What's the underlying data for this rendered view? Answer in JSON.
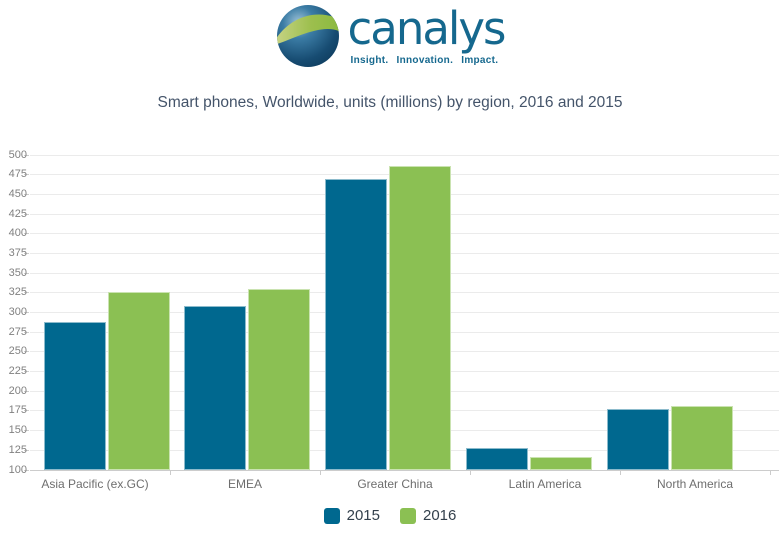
{
  "logo": {
    "brand": "canalys",
    "tagline": "Insight. Innovation. Impact."
  },
  "chart_data": {
    "type": "bar",
    "title": "Smart phones, Worldwide, units (millions) by region, 2016 and 2015",
    "categories": [
      "Asia Pacific (ex.GC)",
      "EMEA",
      "Greater China",
      "Latin America",
      "North America"
    ],
    "series": [
      {
        "name": "2015",
        "color": "#00688F",
        "values": [
          288,
          308,
          469,
          128,
          177
        ]
      },
      {
        "name": "2016",
        "color": "#8BC053",
        "values": [
          326,
          330,
          486,
          116,
          181
        ]
      }
    ],
    "xlabel": "",
    "ylabel": "",
    "ylim": [
      100,
      500
    ],
    "ytick_step": 25,
    "grid": true,
    "legend_position": "bottom"
  },
  "colors": {
    "brand_teal": "#15688E",
    "title_text": "#44546A",
    "grid_line": "#EBEBEB",
    "axis_line": "#CCCCCC",
    "y_label_text": "#808080",
    "x_label_text": "#6E6E6E",
    "legend_text": "#33404C",
    "globe_dark_blue": "#123E60",
    "globe_green": "#9DBF4E"
  }
}
